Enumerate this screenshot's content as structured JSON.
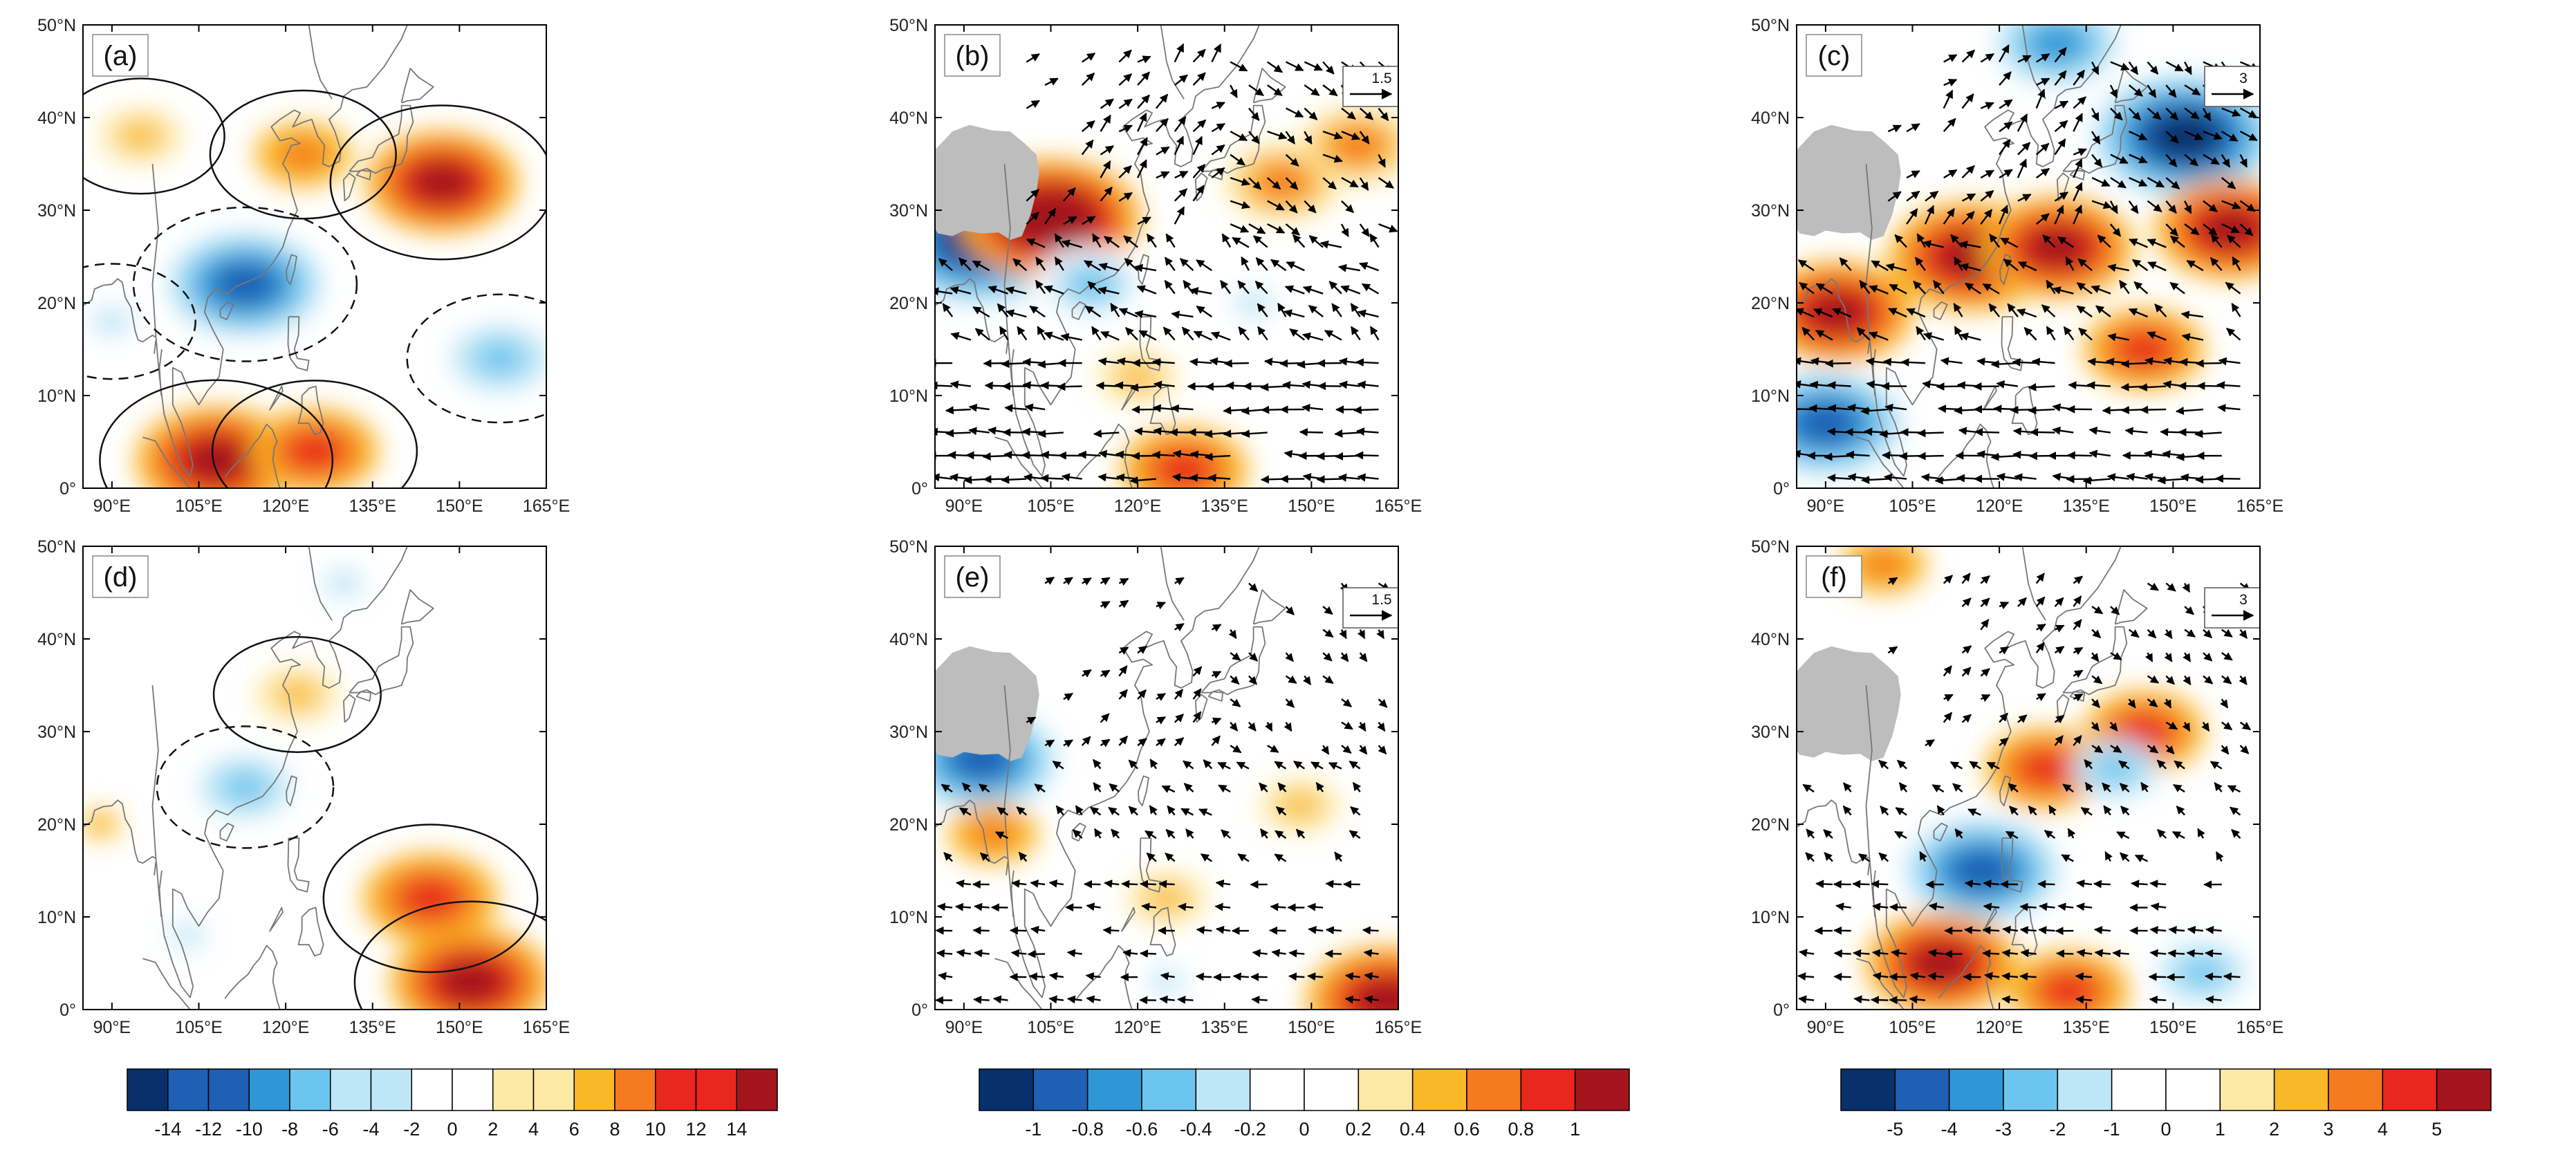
{
  "figure": {
    "x_ticks": [
      "90°E",
      "105°E",
      "120°E",
      "135°E",
      "150°E",
      "165°E"
    ],
    "y_ticks": [
      "0°",
      "10°N",
      "20°N",
      "30°N",
      "40°N",
      "50°N"
    ],
    "lon_range": [
      85,
      165
    ],
    "lat_range": [
      0,
      50
    ],
    "panels": [
      {
        "id": "a",
        "label": "(a)",
        "type": "shading_contour",
        "colorbar": 0,
        "blobs": [
          {
            "lon": 113,
            "lat": 22,
            "value": -11
          },
          {
            "lon": 147,
            "lat": 33,
            "value": 11
          },
          {
            "lon": 123,
            "lat": 36,
            "value": 7
          },
          {
            "lon": 108,
            "lat": 3,
            "value": 12
          },
          {
            "lon": 125,
            "lat": 4,
            "value": 9
          },
          {
            "lon": 157,
            "lat": 14,
            "value": -7
          },
          {
            "lon": 95,
            "lat": 38,
            "value": 5
          },
          {
            "lon": 90,
            "lat": 18,
            "value": -5
          }
        ]
      },
      {
        "id": "b",
        "label": "(b)",
        "type": "shading_wind",
        "colorbar": 1,
        "tibet": true,
        "ref_vector": "1.5",
        "blobs": [
          {
            "lon": 93,
            "lat": 27,
            "value": -1.0
          },
          {
            "lon": 105,
            "lat": 29,
            "value": 0.9
          },
          {
            "lon": 112,
            "lat": 22,
            "value": -0.5
          },
          {
            "lon": 145,
            "lat": 33,
            "value": 0.5
          },
          {
            "lon": 128,
            "lat": 2,
            "value": 0.6
          },
          {
            "lon": 140,
            "lat": 20,
            "value": -0.3
          },
          {
            "lon": 120,
            "lat": 12,
            "value": 0.3
          },
          {
            "lon": 158,
            "lat": 37,
            "value": 0.5
          }
        ]
      },
      {
        "id": "c",
        "label": "(c)",
        "type": "shading_wind",
        "colorbar": 2,
        "tibet": true,
        "ref_vector": "3",
        "blobs": [
          {
            "lon": 115,
            "lat": 25,
            "value": 4.5
          },
          {
            "lon": 130,
            "lat": 26,
            "value": 4
          },
          {
            "lon": 152,
            "lat": 38,
            "value": -5
          },
          {
            "lon": 90,
            "lat": 7,
            "value": -4
          },
          {
            "lon": 92,
            "lat": 19,
            "value": 4
          },
          {
            "lon": 160,
            "lat": 28,
            "value": 4
          },
          {
            "lon": 145,
            "lat": 15,
            "value": 3
          },
          {
            "lon": 130,
            "lat": 48,
            "value": -3
          }
        ]
      },
      {
        "id": "d",
        "label": "(d)",
        "type": "shading_contour",
        "colorbar": 0,
        "blobs": [
          {
            "lon": 145,
            "lat": 12,
            "value": 10
          },
          {
            "lon": 152,
            "lat": 3,
            "value": 12
          },
          {
            "lon": 113,
            "lat": 24,
            "value": -6
          },
          {
            "lon": 122,
            "lat": 34,
            "value": 5
          },
          {
            "lon": 88,
            "lat": 20,
            "value": 4
          },
          {
            "lon": 130,
            "lat": 46,
            "value": -4
          },
          {
            "lon": 103,
            "lat": 8,
            "value": -3
          }
        ]
      },
      {
        "id": "e",
        "label": "(e)",
        "type": "shading_wind",
        "colorbar": 1,
        "tibet": true,
        "ref_vector": "1.5",
        "blobs": [
          {
            "lon": 93,
            "lat": 27,
            "value": -0.7
          },
          {
            "lon": 148,
            "lat": 22,
            "value": 0.3
          },
          {
            "lon": 125,
            "lat": 12,
            "value": 0.3
          },
          {
            "lon": 95,
            "lat": 19,
            "value": 0.4
          },
          {
            "lon": 125,
            "lat": 3,
            "value": -0.2
          },
          {
            "lon": 163,
            "lat": 1,
            "value": 0.8
          }
        ]
      },
      {
        "id": "f",
        "label": "(f)",
        "type": "shading_wind",
        "colorbar": 2,
        "tibet": true,
        "ref_vector": "3",
        "blobs": [
          {
            "lon": 117,
            "lat": 15,
            "value": -4
          },
          {
            "lon": 110,
            "lat": 5,
            "value": 4
          },
          {
            "lon": 132,
            "lat": 2,
            "value": 3
          },
          {
            "lon": 145,
            "lat": 30,
            "value": 3
          },
          {
            "lon": 128,
            "lat": 26,
            "value": 3
          },
          {
            "lon": 140,
            "lat": 26,
            "value": -2
          },
          {
            "lon": 155,
            "lat": 4,
            "value": -2
          },
          {
            "lon": 100,
            "lat": 48,
            "value": 2
          }
        ]
      }
    ],
    "colorbars": [
      {
        "id": "cbar-a-d",
        "levels": [
          "-14",
          "-12",
          "-10",
          "-8",
          "-6",
          "-4",
          "-2",
          "0",
          "2",
          "4",
          "6",
          "8",
          "10",
          "12",
          "14"
        ],
        "vmax": 15
      },
      {
        "id": "cbar-b-e",
        "levels": [
          "-1",
          "-0.8",
          "-0.6",
          "-0.4",
          "-0.2",
          "0",
          "0.2",
          "0.4",
          "0.6",
          "0.8",
          "1"
        ],
        "vmax": 1
      },
      {
        "id": "cbar-c-f",
        "levels": [
          "-5",
          "-4",
          "-3",
          "-2",
          "-1",
          "0",
          "1",
          "2",
          "3",
          "4",
          "5"
        ],
        "vmax": 5.5
      }
    ],
    "colors": {
      "neg": [
        "#08306b",
        "#1f5fb4",
        "#2f97d6",
        "#6cc5ee",
        "#bde6f6",
        "#ffffff"
      ],
      "pos": [
        "#ffffff",
        "#fde9a6",
        "#f9b827",
        "#f57a20",
        "#e8271f",
        "#a3141c"
      ],
      "tibet": "#bdbdbd",
      "coast": "#777777"
    }
  }
}
